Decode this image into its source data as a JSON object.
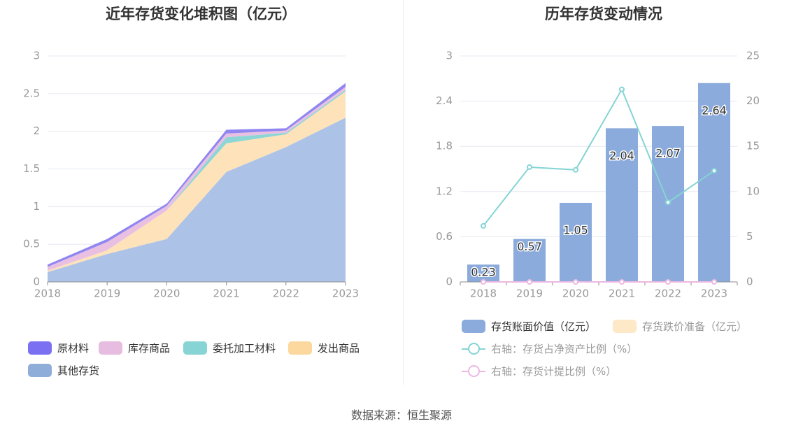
{
  "source_text": "数据来源：恒生聚源",
  "chart_data": [
    {
      "type": "area",
      "stacked": true,
      "title": "近年存货变化堆积图（亿元）",
      "x": [
        "2018",
        "2019",
        "2020",
        "2021",
        "2022",
        "2023"
      ],
      "ylim": [
        0,
        3
      ],
      "yticks": [
        "0",
        "0.5",
        "1",
        "1.5",
        "2",
        "2.5",
        "3"
      ],
      "grid": true,
      "legend_position": "bottom",
      "series": [
        {
          "name": "其他存货",
          "color": "#a8c0e6",
          "values": [
            0.13,
            0.37,
            0.57,
            1.46,
            1.79,
            2.18
          ]
        },
        {
          "name": "发出商品",
          "color": "#fde0b6",
          "values": [
            0.02,
            0.05,
            0.38,
            0.38,
            0.17,
            0.35
          ]
        },
        {
          "name": "委托加工材料",
          "color": "#86d4d4",
          "values": [
            0.0,
            0.0,
            0.0,
            0.08,
            0.02,
            0.02
          ]
        },
        {
          "name": "库存商品",
          "color": "#e8bde0",
          "values": [
            0.05,
            0.11,
            0.06,
            0.05,
            0.03,
            0.04
          ]
        },
        {
          "name": "原材料",
          "color": "#8a80f0",
          "values": [
            0.03,
            0.04,
            0.03,
            0.05,
            0.03,
            0.05
          ]
        }
      ],
      "legend": [
        {
          "name": "原材料",
          "color": "#7b6ff2"
        },
        {
          "name": "库存商品",
          "color": "#e6bde0"
        },
        {
          "name": "委托加工材料",
          "color": "#86d4d4"
        },
        {
          "name": "发出商品",
          "color": "#fdd89e"
        },
        {
          "name": "其他存货",
          "color": "#8fadd9"
        }
      ]
    },
    {
      "type": "bar",
      "title": "历年存货变动情况",
      "categories": [
        "2018",
        "2019",
        "2020",
        "2021",
        "2022",
        "2023"
      ],
      "ylim": [
        0,
        3
      ],
      "yticks": [
        "0",
        "0.6",
        "1.2",
        "1.8",
        "2.4",
        "3"
      ],
      "y2lim": [
        0,
        25
      ],
      "y2ticks": [
        "0",
        "5",
        "10",
        "15",
        "20",
        "25"
      ],
      "grid": true,
      "legend_position": "bottom",
      "bars": [
        {
          "name": "存货账面价值（亿元）",
          "color": "#8aabdb",
          "values": [
            0.23,
            0.57,
            1.05,
            2.04,
            2.07,
            2.64
          ],
          "labels": [
            "0.23",
            "0.57",
            "1.05",
            "2.04",
            "2.07",
            "2.64"
          ]
        },
        {
          "name": "存货跌价准备（亿元）",
          "color": "#fde8c8",
          "values": [
            0,
            0,
            0,
            0,
            0,
            0
          ]
        }
      ],
      "lines": [
        {
          "name": "右轴：存货占净资产比例（%）",
          "color": "#86d4d4",
          "values": [
            6.2,
            12.7,
            12.4,
            21.3,
            8.8,
            12.3
          ]
        },
        {
          "name": "右轴：存货计提比例（%）",
          "color": "#ecb8e2",
          "values": [
            0,
            0,
            0,
            0,
            0,
            0
          ]
        }
      ]
    }
  ]
}
